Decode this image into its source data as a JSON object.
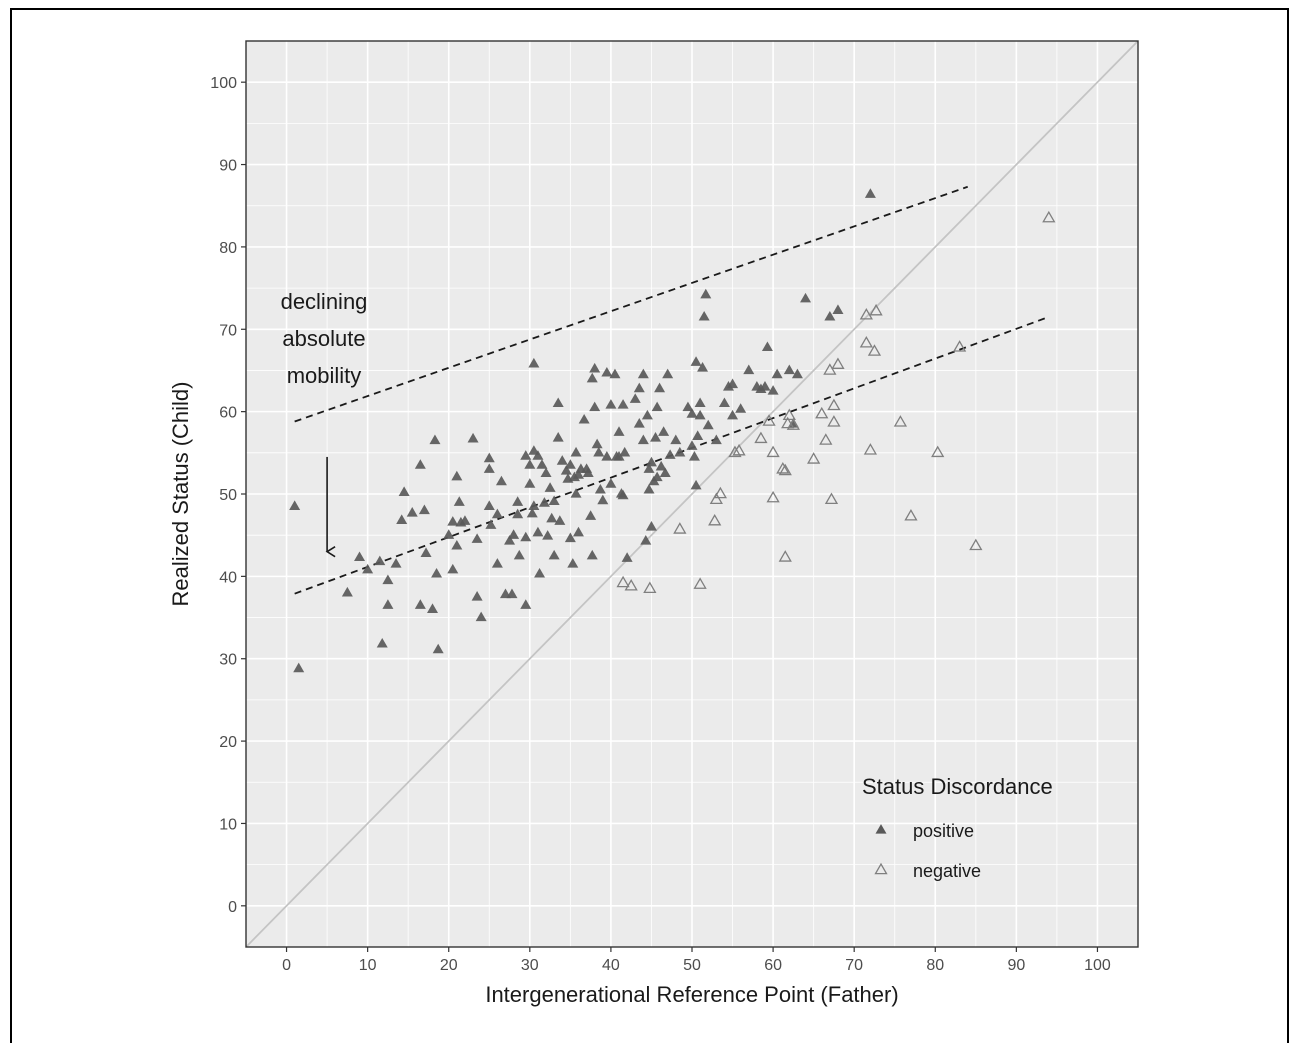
{
  "chart_data": {
    "type": "scatter",
    "title": "",
    "xlabel": "Intergenerational Reference Point (Father)",
    "ylabel": "Realized Status (Child)",
    "xlim": [
      -5,
      105
    ],
    "ylim": [
      -5,
      105
    ],
    "x_ticks": [
      "0",
      "10",
      "20",
      "30",
      "40",
      "50",
      "60",
      "70",
      "80",
      "90",
      "100"
    ],
    "y_ticks": [
      "0",
      "10",
      "20",
      "30",
      "40",
      "50",
      "60",
      "70",
      "80",
      "90",
      "100"
    ],
    "grid": true,
    "background": "#ebebeb",
    "legend": {
      "title": "Status Discordance",
      "position": "bottom-right",
      "entries": [
        {
          "label": "positive",
          "marker": "filled-triangle",
          "color": "#595959"
        },
        {
          "label": "negative",
          "marker": "open-triangle",
          "color": "#7f7f7f"
        }
      ]
    },
    "annotation": {
      "lines": [
        "declining",
        "absolute",
        "mobility"
      ]
    },
    "reference_lines": [
      {
        "kind": "identity",
        "from": [
          -5,
          -5
        ],
        "to": [
          105,
          105
        ],
        "style": "solid",
        "color": "#c4c4c4"
      },
      {
        "kind": "fit-upper",
        "from": [
          1,
          58.8
        ],
        "to": [
          84,
          87.3
        ],
        "style": "dashed",
        "color": "#1a1a1a"
      },
      {
        "kind": "fit-lower",
        "from": [
          1,
          37.9
        ],
        "to": [
          94,
          71.5
        ],
        "style": "dashed",
        "color": "#1a1a1a"
      }
    ],
    "arrow": {
      "from": [
        5,
        54.5
      ],
      "to": [
        5,
        43
      ]
    },
    "series": [
      {
        "name": "positive",
        "points": [
          [
            1.0,
            48.5
          ],
          [
            1.5,
            28.8
          ],
          [
            7.5,
            38.0
          ],
          [
            9.0,
            42.3
          ],
          [
            10.0,
            40.8
          ],
          [
            11.5,
            41.8
          ],
          [
            11.8,
            31.8
          ],
          [
            12.5,
            36.5
          ],
          [
            12.5,
            39.5
          ],
          [
            13.5,
            41.5
          ],
          [
            14.2,
            46.8
          ],
          [
            14.5,
            50.2
          ],
          [
            15.5,
            47.7
          ],
          [
            16.5,
            53.5
          ],
          [
            16.5,
            36.5
          ],
          [
            17.0,
            48.0
          ],
          [
            17.2,
            42.8
          ],
          [
            18.0,
            36.0
          ],
          [
            18.3,
            56.5
          ],
          [
            18.5,
            40.3
          ],
          [
            18.7,
            31.1
          ],
          [
            20.0,
            45.0
          ],
          [
            20.5,
            46.6
          ],
          [
            20.5,
            40.8
          ],
          [
            21.0,
            52.1
          ],
          [
            21.0,
            43.7
          ],
          [
            21.3,
            49.0
          ],
          [
            21.5,
            46.5
          ],
          [
            22.0,
            46.7
          ],
          [
            23.0,
            56.7
          ],
          [
            23.5,
            37.5
          ],
          [
            23.5,
            44.5
          ],
          [
            24.0,
            35.0
          ],
          [
            25.0,
            48.5
          ],
          [
            25.0,
            53.0
          ],
          [
            25.0,
            54.3
          ],
          [
            25.2,
            46.2
          ],
          [
            26.0,
            47.5
          ],
          [
            26.0,
            41.5
          ],
          [
            26.5,
            51.5
          ],
          [
            27.0,
            37.8
          ],
          [
            27.5,
            44.3
          ],
          [
            27.8,
            37.8
          ],
          [
            28.0,
            45.0
          ],
          [
            28.5,
            47.5
          ],
          [
            28.5,
            49.0
          ],
          [
            28.7,
            42.5
          ],
          [
            29.5,
            44.7
          ],
          [
            29.5,
            54.6
          ],
          [
            29.5,
            36.5
          ],
          [
            30.0,
            53.5
          ],
          [
            30.0,
            51.2
          ],
          [
            30.3,
            47.6
          ],
          [
            30.5,
            48.5
          ],
          [
            30.5,
            65.8
          ],
          [
            30.5,
            55.2
          ],
          [
            31.0,
            54.6
          ],
          [
            31.0,
            45.3
          ],
          [
            31.2,
            40.3
          ],
          [
            31.5,
            53.5
          ],
          [
            31.8,
            48.9
          ],
          [
            32.0,
            52.5
          ],
          [
            32.2,
            44.9
          ],
          [
            32.5,
            50.7
          ],
          [
            32.7,
            47.0
          ],
          [
            33.0,
            42.5
          ],
          [
            33.0,
            49.1
          ],
          [
            33.5,
            56.8
          ],
          [
            33.5,
            61.0
          ],
          [
            33.7,
            46.7
          ],
          [
            34.0,
            54.0
          ],
          [
            34.5,
            52.8
          ],
          [
            34.7,
            51.8
          ],
          [
            35.0,
            53.5
          ],
          [
            35.0,
            44.6
          ],
          [
            35.3,
            41.5
          ],
          [
            35.5,
            52.0
          ],
          [
            35.7,
            50.0
          ],
          [
            35.7,
            55.0
          ],
          [
            36.0,
            52.3
          ],
          [
            36.0,
            45.3
          ],
          [
            36.3,
            53.0
          ],
          [
            36.7,
            59.0
          ],
          [
            37.0,
            53.0
          ],
          [
            37.2,
            52.5
          ],
          [
            37.5,
            47.3
          ],
          [
            37.7,
            64.0
          ],
          [
            37.7,
            42.5
          ],
          [
            38.0,
            65.2
          ],
          [
            38.0,
            60.5
          ],
          [
            38.3,
            56.0
          ],
          [
            38.5,
            55.0
          ],
          [
            38.7,
            50.5
          ],
          [
            39.0,
            49.2
          ],
          [
            39.5,
            54.5
          ],
          [
            39.5,
            64.7
          ],
          [
            40.0,
            60.8
          ],
          [
            40.0,
            51.2
          ],
          [
            40.5,
            64.5
          ],
          [
            40.7,
            54.5
          ],
          [
            41.0,
            57.5
          ],
          [
            41.0,
            54.5
          ],
          [
            41.3,
            50.0
          ],
          [
            41.5,
            49.8
          ],
          [
            41.5,
            60.8
          ],
          [
            41.7,
            55.0
          ],
          [
            42.0,
            42.2
          ],
          [
            43.0,
            61.5
          ],
          [
            43.5,
            62.8
          ],
          [
            43.5,
            58.5
          ],
          [
            44.0,
            64.5
          ],
          [
            44.0,
            56.5
          ],
          [
            44.3,
            44.3
          ],
          [
            44.5,
            59.5
          ],
          [
            44.7,
            53.0
          ],
          [
            44.7,
            50.5
          ],
          [
            45.0,
            53.8
          ],
          [
            45.0,
            46.0
          ],
          [
            45.3,
            51.5
          ],
          [
            45.5,
            56.8
          ],
          [
            45.7,
            52.0
          ],
          [
            45.7,
            60.5
          ],
          [
            46.0,
            62.8
          ],
          [
            46.2,
            53.3
          ],
          [
            46.5,
            57.5
          ],
          [
            46.7,
            52.5
          ],
          [
            47.0,
            64.5
          ],
          [
            47.3,
            54.7
          ],
          [
            48.0,
            56.5
          ],
          [
            48.5,
            55.0
          ],
          [
            49.5,
            60.5
          ],
          [
            50.0,
            55.8
          ],
          [
            50.0,
            59.7
          ],
          [
            50.3,
            54.5
          ],
          [
            50.5,
            66.0
          ],
          [
            50.5,
            51.0
          ],
          [
            50.7,
            57.0
          ],
          [
            51.0,
            61.0
          ],
          [
            51.0,
            59.5
          ],
          [
            51.3,
            65.3
          ],
          [
            51.5,
            71.5
          ],
          [
            51.7,
            74.2
          ],
          [
            52.0,
            58.3
          ],
          [
            53.0,
            56.5
          ],
          [
            54.0,
            61.0
          ],
          [
            54.5,
            63.0
          ],
          [
            55.0,
            59.5
          ],
          [
            55.0,
            63.3
          ],
          [
            56.0,
            60.3
          ],
          [
            57.0,
            65.0
          ],
          [
            58.0,
            63.0
          ],
          [
            58.5,
            62.7
          ],
          [
            59.0,
            63.0
          ],
          [
            59.3,
            67.8
          ],
          [
            60.0,
            62.5
          ],
          [
            60.5,
            64.5
          ],
          [
            62.0,
            65.0
          ],
          [
            62.5,
            58.5
          ],
          [
            63.0,
            64.5
          ],
          [
            64.0,
            73.7
          ],
          [
            67.0,
            71.5
          ],
          [
            68.0,
            72.3
          ],
          [
            72.0,
            86.4
          ]
        ]
      },
      {
        "name": "negative",
        "points": [
          [
            41.5,
            39.2
          ],
          [
            42.5,
            38.8
          ],
          [
            44.8,
            38.5
          ],
          [
            48.5,
            45.7
          ],
          [
            51.0,
            39.0
          ],
          [
            52.8,
            46.7
          ],
          [
            53.0,
            49.3
          ],
          [
            53.5,
            50.0
          ],
          [
            55.3,
            55.0
          ],
          [
            55.8,
            55.2
          ],
          [
            58.5,
            56.7
          ],
          [
            59.5,
            58.8
          ],
          [
            60.0,
            55.0
          ],
          [
            60.0,
            49.5
          ],
          [
            61.2,
            53.0
          ],
          [
            61.5,
            52.8
          ],
          [
            61.5,
            42.3
          ],
          [
            61.8,
            58.5
          ],
          [
            62.0,
            59.5
          ],
          [
            62.5,
            58.3
          ],
          [
            65.0,
            54.2
          ],
          [
            66.0,
            59.7
          ],
          [
            66.5,
            56.5
          ],
          [
            67.0,
            65.0
          ],
          [
            67.2,
            49.3
          ],
          [
            67.5,
            60.7
          ],
          [
            67.5,
            58.7
          ],
          [
            68.0,
            65.7
          ],
          [
            71.5,
            68.3
          ],
          [
            71.5,
            71.7
          ],
          [
            72.0,
            55.3
          ],
          [
            72.5,
            67.3
          ],
          [
            72.7,
            72.2
          ],
          [
            75.7,
            58.7
          ],
          [
            77.0,
            47.3
          ],
          [
            80.3,
            55.0
          ],
          [
            83.0,
            67.8
          ],
          [
            85.0,
            43.7
          ],
          [
            94.0,
            83.5
          ]
        ]
      }
    ]
  }
}
